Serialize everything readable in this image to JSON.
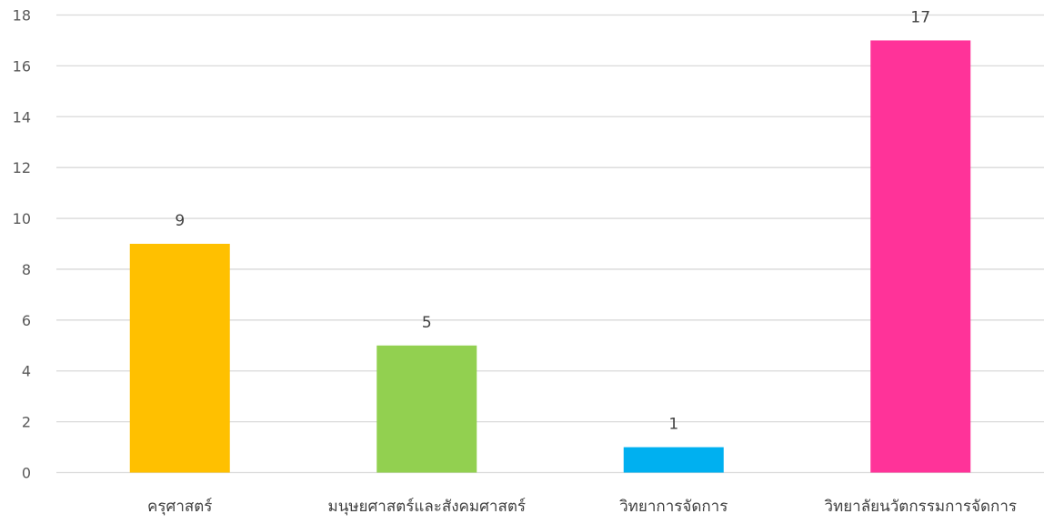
{
  "chart_data": {
    "type": "bar",
    "title": "",
    "xlabel": "",
    "ylabel": "",
    "categories": [
      "ครุศาสตร์",
      "มนุษยศาสตร์และสังคมศาสตร์",
      "วิทยาการจัดการ",
      "วิทยาลัยนวัตกรรมการจัดการ"
    ],
    "values": [
      9,
      5,
      1,
      17
    ],
    "data_labels": [
      "9",
      "5",
      "1",
      "17"
    ],
    "colors": [
      "#FFC000",
      "#92D050",
      "#00B0F0",
      "#FF3399"
    ],
    "ylim": [
      0,
      18
    ],
    "y_ticks": [
      0,
      2,
      4,
      6,
      8,
      10,
      12,
      14,
      16,
      18
    ],
    "y_tick_labels": [
      "0",
      "2",
      "4",
      "6",
      "8",
      "10",
      "12",
      "14",
      "16",
      "18"
    ],
    "grid": true,
    "legend": "none"
  }
}
